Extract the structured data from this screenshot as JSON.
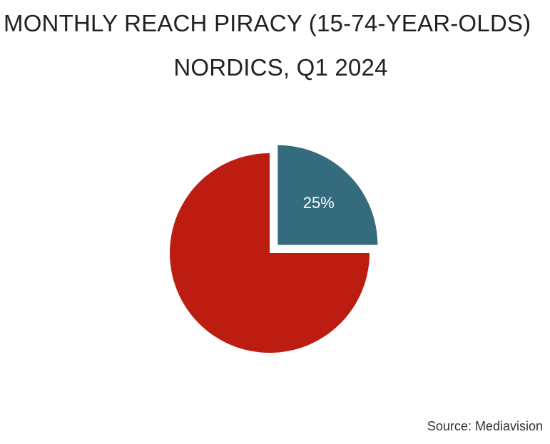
{
  "chart_data": {
    "type": "pie",
    "title": "MONTHLY REACH PIRACY (15-74-YEAR-OLDS)",
    "subtitle": "NORDICS, Q1 2024",
    "slices": [
      {
        "value": 25,
        "label": "25%",
        "color": "#356c7d",
        "exploded": true
      },
      {
        "value": 75,
        "label": "",
        "color": "#bd1c11",
        "exploded": false
      }
    ],
    "legend": "none"
  },
  "source": "Source: Mediavision"
}
